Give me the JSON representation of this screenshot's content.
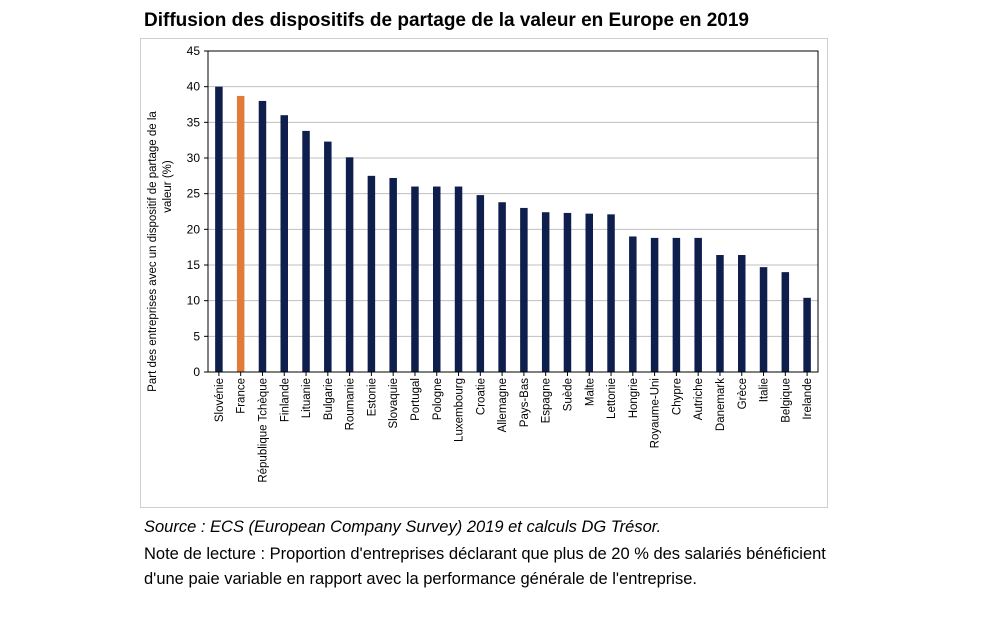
{
  "title": "Diffusion des dispositifs de partage de la valeur en Europe en 2019",
  "source": "Source : ECS (European Company Survey) 2019 et calculs DG Trésor.",
  "note": "Note de lecture : Proportion d'entreprises déclarant que plus de 20 % des salariés bénéficient d'une paie variable en rapport avec la performance générale de l'entreprise.",
  "colors": {
    "bar": "#0f1f4d",
    "highlight": "#e07b39",
    "grid": "#bfbfbf"
  },
  "chart_data": {
    "type": "bar",
    "title": "Diffusion des dispositifs de partage de la valeur en Europe en 2019",
    "ylabel": "Part des entreprises avec un dispositif de partage de la valeur  (%)",
    "xlabel": "",
    "ylim": [
      0,
      45
    ],
    "ytick_step": 5,
    "grid": true,
    "highlight": "France",
    "categories": [
      "Slovénie",
      "France",
      "République Tchèque",
      "Finlande",
      "Lituanie",
      "Bulgarie",
      "Roumanie",
      "Estonie",
      "Slovaquie",
      "Portugal",
      "Pologne",
      "Luxembourg",
      "Croatie",
      "Allemagne",
      "Pays-Bas",
      "Espagne",
      "Suède",
      "Malte",
      "Lettonie",
      "Hongrie",
      "Royaume-Uni",
      "Chypre",
      "Autriche",
      "Danemark",
      "Grèce",
      "Italie",
      "Belgique",
      "Irelande"
    ],
    "values": [
      40,
      38.7,
      38,
      36,
      33.8,
      32.3,
      30.1,
      27.5,
      27.2,
      26,
      26,
      26,
      24.8,
      23.8,
      23,
      22.4,
      22.3,
      22.2,
      22.1,
      19,
      18.8,
      18.8,
      18.8,
      16.4,
      16.4,
      14.7,
      14,
      10.4
    ]
  }
}
